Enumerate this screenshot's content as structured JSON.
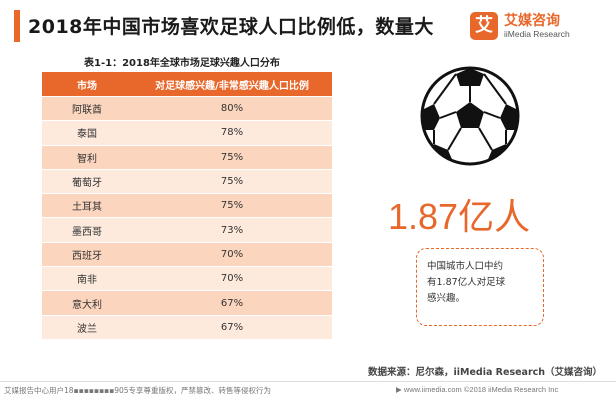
{
  "header": {
    "title": "2018年中国市场喜欢足球人口比例低，数量大"
  },
  "logo": {
    "mark": "艾",
    "name_cn": "艾媒咨询",
    "name_en": "iiMedia Research"
  },
  "chart_data": {
    "type": "table",
    "title": "表1-1：2018年全球市场足球兴趣人口分布",
    "columns": [
      "市场",
      "对足球感兴趣/非常感兴趣人口比例"
    ],
    "rows": [
      {
        "country": "阿联酋",
        "pct": "80%"
      },
      {
        "country": "泰国",
        "pct": "78%"
      },
      {
        "country": "智利",
        "pct": "75%"
      },
      {
        "country": "葡萄牙",
        "pct": "75%"
      },
      {
        "country": "土耳其",
        "pct": "75%"
      },
      {
        "country": "墨西哥",
        "pct": "73%"
      },
      {
        "country": "西班牙",
        "pct": "70%"
      },
      {
        "country": "南非",
        "pct": "70%"
      },
      {
        "country": "意大利",
        "pct": "67%"
      },
      {
        "country": "波兰",
        "pct": "67%"
      }
    ]
  },
  "highlight": {
    "big_number": "1.87亿人",
    "note_line1": "中国城市人口中约",
    "note_line2": "有1.87亿人对足球",
    "note_line3": "感兴趣。"
  },
  "source": "数据来源：尼尔森，iiMedia Research（艾媒咨询）",
  "footer": {
    "left": "艾媒报告中心用户18▪▪▪▪▪▪▪▪905专享尊重版权，严禁篡改、转售等侵权行为",
    "right": "▶ www.iimedia.com    ©2018  iiMedia Research  Inc"
  },
  "colors": {
    "accent": "#e8672a",
    "row_odd": "#fbd5bd",
    "row_even": "#fdeadd"
  },
  "icons": {
    "ball": "soccer-ball-icon"
  }
}
